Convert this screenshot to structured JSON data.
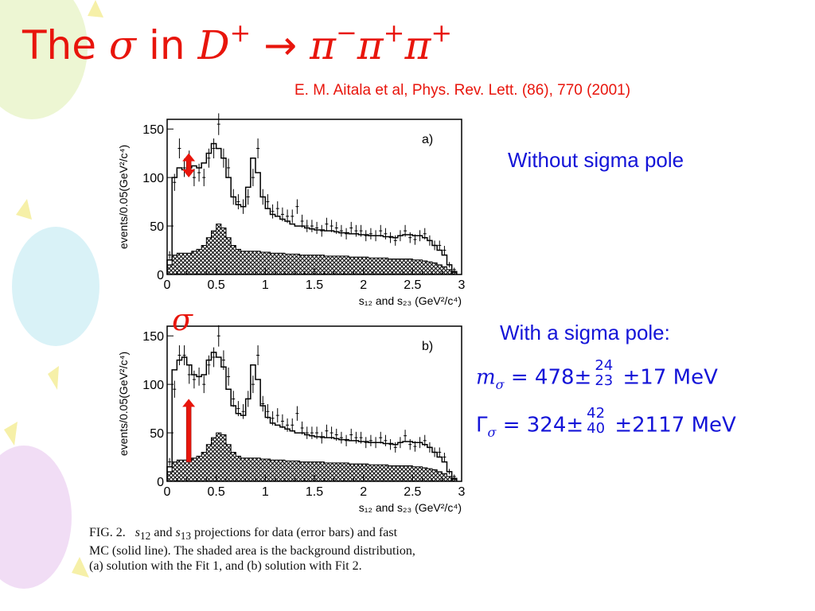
{
  "slide": {
    "title_prefix": "The",
    "title_sigma": "σ",
    "title_in": "in",
    "title_decay": "D",
    "title_decay_sup": "+",
    "title_arrow": "→",
    "title_pi1": "π",
    "title_pi1_sup": "−",
    "title_pi2": "π",
    "title_pi2_sup": "+",
    "title_pi3": "π",
    "title_pi3_sup": "+",
    "citation": "E. M. Aitala et al, Phys. Rev. Lett. (86), 770 (2001)",
    "without_label": "Without  sigma pole",
    "with_label": "With a sigma pole:",
    "sigma_marker": "σ"
  },
  "results": {
    "mass": {
      "symbol": "m",
      "sub": "σ",
      "eq": "=",
      "value": "478±",
      "err_up": "24",
      "err_down": "23",
      "syst": "±17",
      "unit": "MeV"
    },
    "width": {
      "symbol": "Γ",
      "sub": "σ",
      "eq": "=",
      "value": "324±",
      "err_up": "42",
      "err_down": "40",
      "syst": "±2117",
      "unit": "MeV"
    }
  },
  "caption": {
    "fig": "FIG. 2.",
    "s12": "s",
    "s12_sub": "12",
    "and": "and",
    "s13": "s",
    "s13_sub": "13",
    "text1": "projections for data (error bars) and fast",
    "text2": "MC (solid line). The shaded area is the background distribution,",
    "text3": "(a) solution with the Fit 1, and (b) solution with Fit 2."
  },
  "chart_data": [
    {
      "type": "bar",
      "panel": "a)",
      "xlabel": "s₁₂ and s₂₃ (GeV²/c⁴)",
      "ylabel": "events/0.05(GeV²/c⁴)",
      "xlim": [
        0,
        3
      ],
      "ylim": [
        0,
        160
      ],
      "xticks": [
        "0",
        "0.5",
        "1",
        "1.5",
        "2",
        "2.5",
        "3"
      ],
      "yticks": [
        "0",
        "50",
        "100",
        "150"
      ],
      "x": [
        0.05,
        0.1,
        0.15,
        0.2,
        0.25,
        0.3,
        0.35,
        0.4,
        0.45,
        0.5,
        0.55,
        0.6,
        0.65,
        0.7,
        0.75,
        0.8,
        0.85,
        0.9,
        0.95,
        1.0,
        1.05,
        1.1,
        1.15,
        1.2,
        1.25,
        1.3,
        1.35,
        1.4,
        1.45,
        1.5,
        1.55,
        1.6,
        1.65,
        1.7,
        1.75,
        1.8,
        1.85,
        1.9,
        1.95,
        2.0,
        2.05,
        2.1,
        2.15,
        2.2,
        2.25,
        2.3,
        2.35,
        2.4,
        2.45,
        2.5,
        2.55,
        2.6,
        2.65,
        2.7,
        2.75,
        2.8,
        2.85,
        2.9,
        2.95
      ],
      "series": [
        {
          "name": "data",
          "values": [
            20,
            95,
            130,
            110,
            118,
            100,
            105,
            100,
            120,
            130,
            155,
            120,
            110,
            80,
            75,
            70,
            80,
            100,
            130,
            80,
            75,
            65,
            68,
            62,
            60,
            60,
            70,
            55,
            50,
            50,
            48,
            45,
            52,
            50,
            48,
            45,
            42,
            48,
            45,
            45,
            40,
            42,
            40,
            45,
            42,
            38,
            35,
            40,
            45,
            38,
            36,
            40,
            42,
            35,
            30,
            30,
            25,
            10,
            5
          ]
        },
        {
          "name": "MC",
          "values": [
            15,
            100,
            110,
            108,
            110,
            112,
            110,
            115,
            125,
            135,
            130,
            120,
            100,
            80,
            72,
            70,
            90,
            120,
            105,
            80,
            68,
            62,
            60,
            57,
            55,
            52,
            50,
            50,
            48,
            47,
            46,
            46,
            45,
            45,
            44,
            43,
            43,
            42,
            42,
            41,
            41,
            40,
            40,
            40,
            39,
            39,
            38,
            40,
            41,
            41,
            40,
            40,
            38,
            35,
            30,
            25,
            20,
            10,
            3
          ]
        },
        {
          "name": "background",
          "values": [
            10,
            20,
            22,
            22,
            22,
            24,
            26,
            30,
            38,
            45,
            52,
            48,
            38,
            30,
            26,
            24,
            24,
            24,
            24,
            23,
            23,
            22,
            22,
            22,
            21,
            21,
            21,
            20,
            20,
            20,
            20,
            20,
            19,
            19,
            19,
            19,
            19,
            18,
            18,
            18,
            18,
            17,
            17,
            17,
            17,
            16,
            16,
            16,
            16,
            16,
            15,
            15,
            14,
            13,
            12,
            10,
            8,
            5,
            2
          ]
        }
      ]
    },
    {
      "type": "bar",
      "panel": "b)",
      "xlabel": "s₁₂ and s₂₃ (GeV²/c⁴)",
      "ylabel": "events/0.05(GeV²/c⁴)",
      "xlim": [
        0,
        3
      ],
      "ylim": [
        0,
        160
      ],
      "xticks": [
        "0",
        "0.5",
        "1",
        "1.5",
        "2",
        "2.5",
        "3"
      ],
      "yticks": [
        "0",
        "50",
        "100",
        "150"
      ],
      "x": [
        0.05,
        0.1,
        0.15,
        0.2,
        0.25,
        0.3,
        0.35,
        0.4,
        0.45,
        0.5,
        0.55,
        0.6,
        0.65,
        0.7,
        0.75,
        0.8,
        0.85,
        0.9,
        0.95,
        1.0,
        1.05,
        1.1,
        1.15,
        1.2,
        1.25,
        1.3,
        1.35,
        1.4,
        1.45,
        1.5,
        1.55,
        1.6,
        1.65,
        1.7,
        1.75,
        1.8,
        1.85,
        1.9,
        1.95,
        2.0,
        2.05,
        2.1,
        2.15,
        2.2,
        2.25,
        2.3,
        2.35,
        2.4,
        2.45,
        2.5,
        2.55,
        2.6,
        2.65,
        2.7,
        2.75,
        2.8,
        2.85,
        2.9,
        2.95
      ],
      "series": [
        {
          "name": "data",
          "values": [
            20,
            95,
            130,
            130,
            110,
            105,
            108,
            100,
            120,
            128,
            150,
            125,
            108,
            85,
            75,
            72,
            85,
            100,
            130,
            80,
            72,
            65,
            68,
            62,
            58,
            58,
            70,
            55,
            50,
            50,
            50,
            45,
            52,
            50,
            48,
            45,
            42,
            48,
            45,
            45,
            40,
            42,
            40,
            45,
            42,
            38,
            35,
            40,
            47,
            38,
            36,
            40,
            42,
            35,
            30,
            30,
            25,
            10,
            5
          ]
        },
        {
          "name": "MC",
          "values": [
            15,
            115,
            125,
            128,
            120,
            110,
            108,
            110,
            125,
            133,
            128,
            118,
            95,
            78,
            70,
            68,
            85,
            120,
            105,
            78,
            66,
            60,
            58,
            56,
            54,
            52,
            50,
            50,
            48,
            47,
            46,
            46,
            45,
            45,
            44,
            43,
            43,
            42,
            42,
            41,
            41,
            40,
            40,
            40,
            39,
            39,
            38,
            40,
            41,
            41,
            40,
            40,
            38,
            35,
            30,
            25,
            20,
            10,
            3
          ]
        },
        {
          "name": "background",
          "values": [
            10,
            20,
            22,
            22,
            22,
            24,
            26,
            30,
            38,
            45,
            50,
            48,
            38,
            30,
            26,
            24,
            24,
            24,
            24,
            23,
            23,
            22,
            22,
            22,
            21,
            21,
            21,
            20,
            20,
            20,
            20,
            20,
            19,
            19,
            19,
            19,
            19,
            18,
            18,
            18,
            18,
            17,
            17,
            17,
            17,
            16,
            16,
            16,
            16,
            16,
            15,
            15,
            14,
            13,
            12,
            10,
            8,
            5,
            2
          ]
        }
      ]
    }
  ]
}
